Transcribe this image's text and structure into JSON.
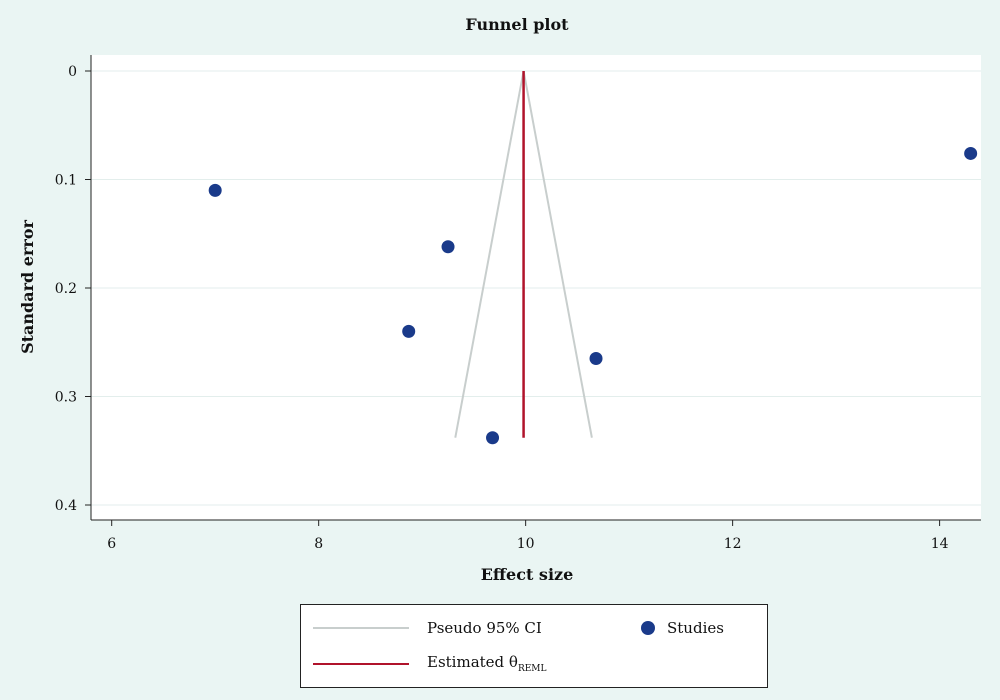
{
  "chart_data": {
    "type": "scatter",
    "title": "Funnel plot",
    "xlabel": "Effect size",
    "ylabel": "Standard error",
    "xlim": [
      5.8,
      14.4
    ],
    "ylim": [
      0,
      0.4
    ],
    "y_inverted": true,
    "x_ticks": [
      6,
      8,
      10,
      12,
      14
    ],
    "y_ticks": [
      0,
      0.1,
      0.2,
      0.3,
      0.4
    ],
    "y_tick_labels": [
      "0",
      "0.1",
      "0.2",
      "0.3",
      "0.4"
    ],
    "grid": "horizontal",
    "series": [
      {
        "name": "Studies",
        "color": "#1a3a8a",
        "points": [
          {
            "x": 7.0,
            "y": 0.11
          },
          {
            "x": 9.25,
            "y": 0.162
          },
          {
            "x": 8.87,
            "y": 0.24
          },
          {
            "x": 10.68,
            "y": 0.265
          },
          {
            "x": 9.68,
            "y": 0.338
          },
          {
            "x": 14.3,
            "y": 0.076
          }
        ]
      }
    ],
    "estimate": {
      "x": 9.98,
      "y_range": [
        0,
        0.338
      ],
      "color": "#b0132b"
    },
    "pseudo_ci": {
      "color": "#c8cecd",
      "apex": {
        "x": 9.98,
        "y": 0
      },
      "base": {
        "y": 0.338,
        "x_left": 9.32,
        "x_right": 10.64
      }
    }
  },
  "legend": {
    "position": "bottom",
    "ci_label": "Pseudo 95% CI",
    "studies_label": "Studies",
    "estimate_prefix": "Estimated θ",
    "estimate_subscript": "REML"
  }
}
